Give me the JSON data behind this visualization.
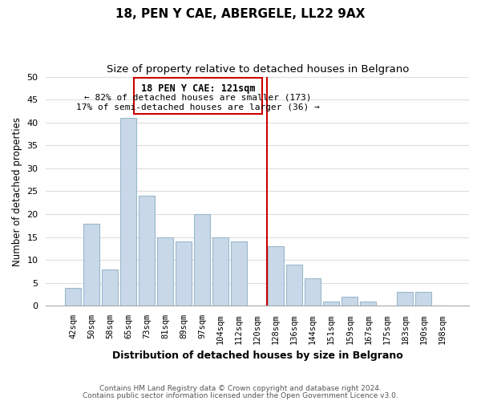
{
  "title": "18, PEN Y CAE, ABERGELE, LL22 9AX",
  "subtitle": "Size of property relative to detached houses in Belgrano",
  "xlabel": "Distribution of detached houses by size in Belgrano",
  "ylabel": "Number of detached properties",
  "bar_color": "#c8d8e8",
  "bar_edge_color": "#9ab8cc",
  "categories": [
    "42sqm",
    "50sqm",
    "58sqm",
    "65sqm",
    "73sqm",
    "81sqm",
    "89sqm",
    "97sqm",
    "104sqm",
    "112sqm",
    "120sqm",
    "128sqm",
    "136sqm",
    "144sqm",
    "151sqm",
    "159sqm",
    "167sqm",
    "175sqm",
    "183sqm",
    "190sqm",
    "198sqm"
  ],
  "values": [
    4,
    18,
    8,
    41,
    24,
    15,
    14,
    20,
    15,
    14,
    0,
    13,
    9,
    6,
    1,
    2,
    1,
    0,
    3,
    3,
    0
  ],
  "ylim": [
    0,
    50
  ],
  "yticks": [
    0,
    5,
    10,
    15,
    20,
    25,
    30,
    35,
    40,
    45,
    50
  ],
  "annotation_title": "18 PEN Y CAE: 121sqm",
  "annotation_line1": "← 82% of detached houses are smaller (173)",
  "annotation_line2": "17% of semi-detached houses are larger (36) →",
  "annotation_box_color": "#ffffff",
  "annotation_box_edge": "#cc0000",
  "footer1": "Contains HM Land Registry data © Crown copyright and database right 2024.",
  "footer2": "Contains public sector information licensed under the Open Government Licence v3.0.",
  "background_color": "#ffffff",
  "grid_color": "#dddddd",
  "ref_line_color": "#cc0000"
}
